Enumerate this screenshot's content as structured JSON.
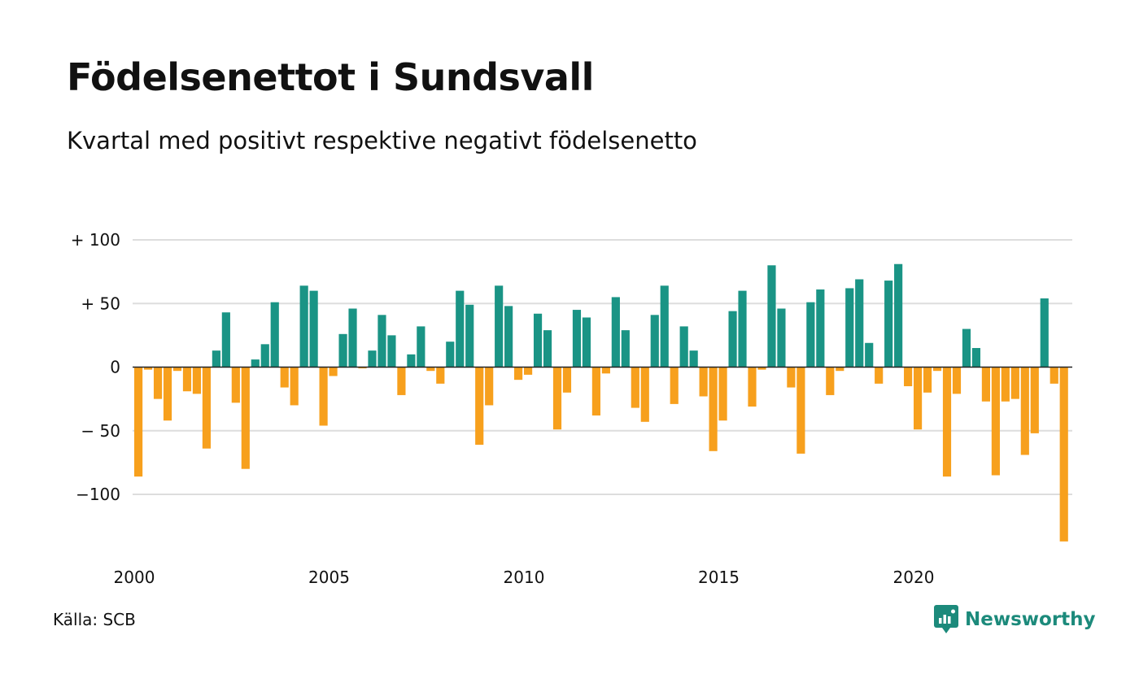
{
  "title": "Födelsenettot i Sundsvall",
  "subtitle": "Kvartal med positivt respektive negativt födelsenetto",
  "source": "Källa: SCB",
  "brand": {
    "name": "Newsworthy",
    "icon": "newsworthy-logo-icon",
    "color": "#1c8a7b"
  },
  "colors": {
    "positive": "#1a9485",
    "negative": "#f7a01d",
    "grid": "#dddddd",
    "zero_line": "#222222"
  },
  "chart_data": {
    "type": "bar",
    "title": "Födelsenettot i Sundsvall",
    "subtitle": "Kvartal med positivt respektive negativt födelsenetto",
    "xlabel": "",
    "ylabel": "",
    "grid": true,
    "legend": "none",
    "x_start": 2000,
    "x_end": 2024,
    "frequency": "quarterly",
    "ylim": [
      -140,
      100
    ],
    "yticks": [
      100,
      50,
      0,
      -50,
      -100
    ],
    "ytick_labels": [
      "+ 100",
      "+  50",
      "0",
      "− 50",
      "−100"
    ],
    "xticks": [
      2000,
      2005,
      2010,
      2015,
      2020
    ],
    "xtick_labels": [
      "2000",
      "2005",
      "2010",
      "2015",
      "2020"
    ],
    "series": [
      {
        "values": [
          -86,
          -2,
          -25,
          -42,
          -3,
          -19,
          -21,
          -64,
          13,
          43,
          -28,
          -80,
          6,
          18,
          51,
          -16,
          -30,
          64,
          60,
          -46,
          -7,
          26,
          46,
          -1,
          13,
          41,
          25,
          -22,
          10,
          32,
          -3,
          -13,
          20,
          60,
          49,
          -61,
          -30,
          64,
          48,
          -10,
          -6,
          42,
          29,
          -49,
          -20,
          45,
          39,
          -38,
          -5,
          55,
          29,
          -32,
          -43,
          41,
          64,
          -29,
          32,
          13,
          -23,
          -66,
          -42,
          44,
          60,
          -31,
          -2,
          80,
          46,
          -16,
          -68,
          51,
          61,
          -22,
          -3,
          62,
          69,
          19,
          -13,
          68,
          81,
          -15,
          -49,
          -20,
          -3,
          -86,
          -21,
          30,
          15,
          -27,
          -85,
          -27,
          -25,
          -69,
          -52,
          54,
          -13,
          -137
        ]
      }
    ]
  }
}
